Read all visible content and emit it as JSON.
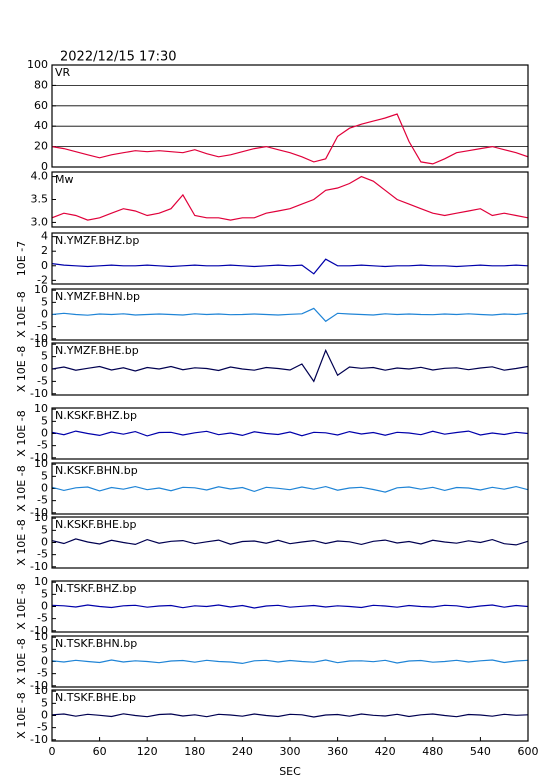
{
  "chart_data": [
    {
      "type": "line",
      "title": "2022/12/15 17:30",
      "label": "VR",
      "color": "#e0003a",
      "grid": true,
      "x": [
        0,
        15,
        30,
        45,
        60,
        75,
        90,
        105,
        120,
        135,
        150,
        165,
        180,
        195,
        210,
        225,
        240,
        255,
        270,
        285,
        300,
        315,
        330,
        345,
        360,
        375,
        390,
        405,
        420,
        435,
        450,
        465,
        480,
        495,
        510,
        525,
        540,
        555,
        570,
        585,
        600
      ],
      "values": [
        20,
        18,
        15,
        12,
        9,
        12,
        14,
        16,
        15,
        16,
        15,
        14,
        17,
        13,
        10,
        12,
        15,
        18,
        20,
        17,
        14,
        10,
        5,
        8,
        30,
        38,
        42,
        45,
        48,
        52,
        25,
        5,
        3,
        8,
        14,
        16,
        18,
        20,
        17,
        14,
        10
      ],
      "xlim": [
        0,
        600
      ],
      "ylim": [
        0,
        100
      ],
      "yticks": [
        0,
        20,
        40,
        60,
        80,
        100
      ]
    },
    {
      "type": "line",
      "label": "Mw",
      "color": "#e0003a",
      "x": [
        0,
        15,
        30,
        45,
        60,
        75,
        90,
        105,
        120,
        135,
        150,
        165,
        180,
        195,
        210,
        225,
        240,
        255,
        270,
        285,
        300,
        315,
        330,
        345,
        360,
        375,
        390,
        405,
        420,
        435,
        450,
        465,
        480,
        495,
        510,
        525,
        540,
        555,
        570,
        585,
        600
      ],
      "values": [
        3.1,
        3.2,
        3.15,
        3.05,
        3.1,
        3.2,
        3.3,
        3.25,
        3.15,
        3.2,
        3.3,
        3.6,
        3.15,
        3.1,
        3.1,
        3.05,
        3.1,
        3.1,
        3.2,
        3.25,
        3.3,
        3.4,
        3.5,
        3.7,
        3.75,
        3.85,
        4.0,
        3.9,
        3.7,
        3.5,
        3.4,
        3.3,
        3.2,
        3.15,
        3.2,
        3.25,
        3.3,
        3.15,
        3.2,
        3.15,
        3.1
      ],
      "xlim": [
        0,
        600
      ],
      "ylim": [
        2.9,
        4.1
      ],
      "yticks": [
        {
          "value": 3,
          "label": "3.0"
        },
        3.5,
        {
          "value": 4,
          "label": "4.0"
        }
      ]
    },
    {
      "type": "line",
      "label": "N.YMZF.BHZ.bp",
      "ylabel": "10E -7",
      "color": "#0000aa",
      "x": [
        0,
        15,
        30,
        45,
        60,
        75,
        90,
        105,
        120,
        135,
        150,
        165,
        180,
        195,
        210,
        225,
        240,
        255,
        270,
        285,
        300,
        315,
        330,
        345,
        360,
        375,
        390,
        405,
        420,
        435,
        450,
        465,
        480,
        495,
        510,
        525,
        540,
        555,
        570,
        585,
        600
      ],
      "values": [
        0.3,
        0.1,
        0,
        -0.1,
        0,
        0.1,
        0,
        0,
        0.1,
        0,
        -0.1,
        0,
        0.1,
        0,
        0,
        0.1,
        0,
        -0.1,
        0,
        0.1,
        0,
        0.1,
        -1.1,
        0.9,
        0,
        0,
        0.1,
        0,
        -0.1,
        0,
        0,
        0.1,
        0,
        0,
        -0.1,
        0,
        0.1,
        0,
        0,
        0.1,
        0
      ],
      "xlim": [
        0,
        600
      ],
      "ylim": [
        -2.5,
        4.5
      ],
      "yticks": [
        -2,
        0,
        2,
        4
      ]
    },
    {
      "type": "line",
      "label": "N.YMZF.BHN.bp",
      "ylabel": "X 10E -8",
      "color": "#1f84d6",
      "x": [
        0,
        15,
        30,
        45,
        60,
        75,
        90,
        105,
        120,
        135,
        150,
        165,
        180,
        195,
        210,
        225,
        240,
        255,
        270,
        285,
        300,
        315,
        330,
        345,
        360,
        375,
        390,
        405,
        420,
        435,
        450,
        465,
        480,
        495,
        510,
        525,
        540,
        555,
        570,
        585,
        600
      ],
      "values": [
        0,
        0.5,
        0,
        -0.3,
        0.2,
        0,
        0.3,
        -0.2,
        0,
        0.2,
        0,
        -0.2,
        0.3,
        0,
        0.2,
        -0.1,
        0,
        0.2,
        0,
        -0.2,
        0.1,
        0.3,
        2.5,
        -2.8,
        0.5,
        0.2,
        0,
        -0.2,
        0.3,
        0,
        0.2,
        0,
        -0.1,
        0.2,
        0,
        0.3,
        0,
        -0.2,
        0.2,
        0,
        0.5
      ],
      "xlim": [
        0,
        600
      ],
      "ylim": [
        -10.5,
        10.5
      ],
      "yticks": [
        -10,
        -5,
        0,
        5,
        10
      ]
    },
    {
      "type": "line",
      "label": "N.YMZF.BHE.bp",
      "ylabel": "X 10E -8",
      "color": "#000050",
      "x": [
        0,
        15,
        30,
        45,
        60,
        75,
        90,
        105,
        120,
        135,
        150,
        165,
        180,
        195,
        210,
        225,
        240,
        255,
        270,
        285,
        300,
        315,
        330,
        345,
        360,
        375,
        390,
        405,
        420,
        435,
        450,
        465,
        480,
        495,
        510,
        525,
        540,
        555,
        570,
        585,
        600
      ],
      "values": [
        0,
        0.8,
        -0.5,
        0.3,
        1,
        -0.4,
        0.5,
        -0.8,
        0.6,
        0,
        1,
        -0.3,
        0.5,
        0.2,
        -0.6,
        0.8,
        0,
        -0.5,
        0.6,
        0.2,
        -0.4,
        2,
        -5,
        7.5,
        -2.5,
        0.8,
        0.3,
        0.6,
        -0.5,
        0.4,
        0,
        0.7,
        -0.4,
        0.3,
        0.5,
        -0.3,
        0.4,
        0.9,
        -0.5,
        0.2,
        1
      ],
      "xlim": [
        0,
        600
      ],
      "ylim": [
        -10.5,
        10.5
      ],
      "yticks": [
        -10,
        -5,
        0,
        5,
        10
      ]
    },
    {
      "type": "line",
      "label": "N.KSKF.BHZ.bp",
      "ylabel": "X 10E -8",
      "color": "#0000aa",
      "x": [
        0,
        15,
        30,
        45,
        60,
        75,
        90,
        105,
        120,
        135,
        150,
        165,
        180,
        195,
        210,
        225,
        240,
        255,
        270,
        285,
        300,
        315,
        330,
        345,
        360,
        375,
        390,
        405,
        420,
        435,
        450,
        465,
        480,
        495,
        510,
        525,
        540,
        555,
        570,
        585,
        600
      ],
      "values": [
        0.5,
        -0.5,
        1,
        0,
        -0.8,
        0.6,
        -0.3,
        0.8,
        -1,
        0.4,
        0.5,
        -0.6,
        0.3,
        0.9,
        -0.5,
        0.2,
        -0.8,
        0.7,
        0,
        -0.4,
        0.6,
        -0.9,
        0.5,
        0.3,
        -0.6,
        0.8,
        -0.2,
        0.4,
        -0.7,
        0.5,
        0.2,
        -0.5,
        0.9,
        -0.3,
        0.4,
        1,
        -0.6,
        0.2,
        -0.4,
        0.5,
        0
      ],
      "xlim": [
        0,
        600
      ],
      "ylim": [
        -10.5,
        10.5
      ],
      "yticks": [
        -10,
        -5,
        0,
        5,
        10
      ]
    },
    {
      "type": "line",
      "label": "N.KSKF.BHN.bp",
      "ylabel": "X 10E -8",
      "color": "#1f84d6",
      "x": [
        0,
        15,
        30,
        45,
        60,
        75,
        90,
        105,
        120,
        135,
        150,
        165,
        180,
        195,
        210,
        225,
        240,
        255,
        270,
        285,
        300,
        315,
        330,
        345,
        360,
        375,
        390,
        405,
        420,
        435,
        450,
        465,
        480,
        495,
        510,
        525,
        540,
        555,
        570,
        585,
        600
      ],
      "values": [
        0.5,
        -0.8,
        0.3,
        0.6,
        -1,
        0.4,
        -0.3,
        0.8,
        -0.5,
        0.2,
        -0.9,
        0.5,
        0.3,
        -0.6,
        0.7,
        -0.2,
        0.4,
        -1.2,
        0.5,
        0.1,
        -0.5,
        0.6,
        -0.3,
        0.8,
        -0.7,
        0.2,
        0.5,
        -0.4,
        -1.5,
        0.3,
        0.6,
        -0.3,
        0.5,
        -0.8,
        0.4,
        0.2,
        -0.6,
        0.5,
        -0.3,
        0.8,
        -0.5
      ],
      "xlim": [
        0,
        600
      ],
      "ylim": [
        -10.5,
        10.5
      ],
      "yticks": [
        -10,
        -5,
        0,
        5,
        10
      ]
    },
    {
      "type": "line",
      "label": "N.KSKF.BHE.bp",
      "ylabel": "X 10E -8",
      "color": "#000050",
      "x": [
        0,
        15,
        30,
        45,
        60,
        75,
        90,
        105,
        120,
        135,
        150,
        165,
        180,
        195,
        210,
        225,
        240,
        255,
        270,
        285,
        300,
        315,
        330,
        345,
        360,
        375,
        390,
        405,
        420,
        435,
        450,
        465,
        480,
        495,
        510,
        525,
        540,
        555,
        570,
        585,
        600
      ],
      "values": [
        0.8,
        -0.4,
        1.5,
        0.2,
        -0.6,
        0.9,
        0,
        -0.8,
        1.2,
        -0.3,
        0.5,
        0.8,
        -0.5,
        0.3,
        1,
        -0.7,
        0.4,
        0.6,
        -0.3,
        0.9,
        -0.5,
        0.2,
        0.8,
        -0.4,
        0.6,
        0.3,
        -0.8,
        0.5,
        1,
        -0.2,
        0.4,
        -0.6,
        0.9,
        0.2,
        -0.3,
        0.7,
        0,
        1.2,
        -0.5,
        -1,
        0.5
      ],
      "xlim": [
        0,
        600
      ],
      "ylim": [
        -10.5,
        10.5
      ],
      "yticks": [
        -10,
        -5,
        0,
        5,
        10
      ]
    },
    {
      "type": "line",
      "label": "N.TSKF.BHZ.bp",
      "ylabel": "X 10E -8",
      "color": "#0000aa",
      "x": [
        0,
        15,
        30,
        45,
        60,
        75,
        90,
        105,
        120,
        135,
        150,
        165,
        180,
        195,
        210,
        225,
        240,
        255,
        270,
        285,
        300,
        315,
        330,
        345,
        360,
        375,
        390,
        405,
        420,
        435,
        450,
        465,
        480,
        495,
        510,
        525,
        540,
        555,
        570,
        585,
        600
      ],
      "values": [
        0.5,
        0.3,
        -0.2,
        0.6,
        0,
        -0.4,
        0.3,
        0.5,
        -0.3,
        0.2,
        0.4,
        -0.5,
        0.3,
        0,
        0.6,
        -0.2,
        0.4,
        -0.6,
        0.2,
        0.5,
        -0.3,
        0.1,
        0.4,
        -0.2,
        0.3,
        0,
        -0.4,
        0.5,
        0.2,
        -0.3,
        0.4,
        0,
        -0.2,
        0.5,
        0.3,
        -0.4,
        0.2,
        0.6,
        -0.3,
        0.4,
        0
      ],
      "xlim": [
        0,
        600
      ],
      "ylim": [
        -10.5,
        10.5
      ],
      "yticks": [
        -10,
        -5,
        0,
        5,
        10
      ]
    },
    {
      "type": "line",
      "label": "N.TSKF.BHN.bp",
      "ylabel": "X 10E -8",
      "color": "#1f84d6",
      "x": [
        0,
        15,
        30,
        45,
        60,
        75,
        90,
        105,
        120,
        135,
        150,
        165,
        180,
        195,
        210,
        225,
        240,
        255,
        270,
        285,
        300,
        315,
        330,
        345,
        360,
        375,
        390,
        405,
        420,
        435,
        450,
        465,
        480,
        495,
        510,
        525,
        540,
        555,
        570,
        585,
        600
      ],
      "values": [
        0.3,
        -0.2,
        0.5,
        0,
        -0.4,
        0.6,
        -0.2,
        0.3,
        0,
        -0.5,
        0.2,
        0.4,
        -0.3,
        0.5,
        0,
        -0.2,
        -0.8,
        0.3,
        0.5,
        -0.2,
        0.4,
        0,
        -0.3,
        0.6,
        -0.5,
        0.2,
        0.3,
        -0.1,
        0.5,
        -0.6,
        0.2,
        0.4,
        -0.3,
        0,
        0.5,
        -0.2,
        0.3,
        0.6,
        -0.4,
        0.2,
        0.5
      ],
      "xlim": [
        0,
        600
      ],
      "ylim": [
        -10.5,
        10.5
      ],
      "yticks": [
        -10,
        -5,
        0,
        5,
        10
      ]
    },
    {
      "type": "line",
      "label": "N.TSKF.BHE.bp",
      "ylabel": "X 10E -8",
      "color": "#000050",
      "xlabel": "SEC",
      "x": [
        0,
        15,
        30,
        45,
        60,
        75,
        90,
        105,
        120,
        135,
        150,
        165,
        180,
        195,
        210,
        225,
        240,
        255,
        270,
        285,
        300,
        315,
        330,
        345,
        360,
        375,
        390,
        405,
        420,
        435,
        450,
        465,
        480,
        495,
        510,
        525,
        540,
        555,
        570,
        585,
        600
      ],
      "values": [
        0.3,
        0.6,
        -0.3,
        0.5,
        0.1,
        -0.4,
        0.7,
        0,
        -0.5,
        0.4,
        0.6,
        -0.2,
        0.3,
        -0.5,
        0.5,
        0.2,
        -0.3,
        0.6,
        0,
        -0.4,
        0.5,
        0.3,
        -0.6,
        0.2,
        0.4,
        -0.3,
        0.6,
        0.1,
        -0.2,
        0.5,
        -0.4,
        0.3,
        0.6,
        0,
        -0.5,
        0.4,
        0.2,
        -0.3,
        0.5,
        0.1,
        0.3
      ],
      "xlim": [
        0,
        600
      ],
      "ylim": [
        -10.5,
        10.5
      ],
      "yticks": [
        -10,
        -5,
        0,
        5,
        10
      ],
      "xticks": [
        0,
        60,
        120,
        180,
        240,
        300,
        360,
        420,
        480,
        540,
        600
      ]
    }
  ]
}
